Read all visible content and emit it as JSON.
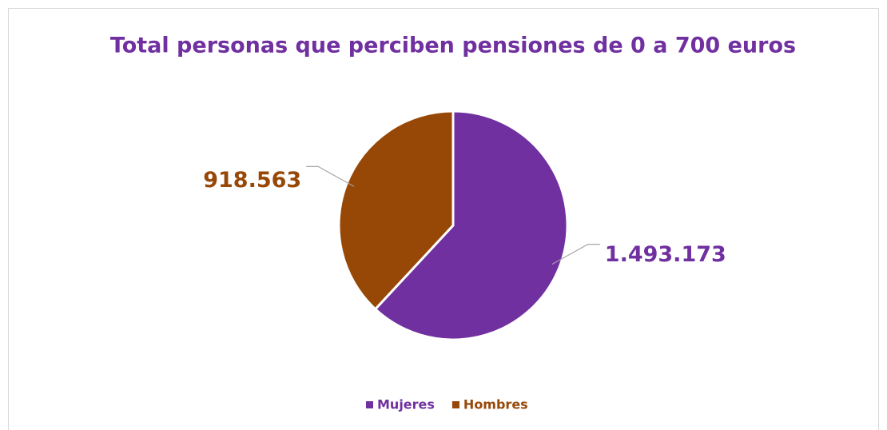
{
  "chart_data": {
    "type": "pie",
    "title": "Total personas que perciben pensiones de 0 a 700 euros",
    "categories": [
      "Mujeres",
      "Hombres"
    ],
    "values": [
      1493173,
      918563
    ],
    "value_labels": [
      "1.493.173",
      "918.563"
    ],
    "colors": [
      "#7030a0",
      "#974706"
    ],
    "legend": "bottom"
  }
}
